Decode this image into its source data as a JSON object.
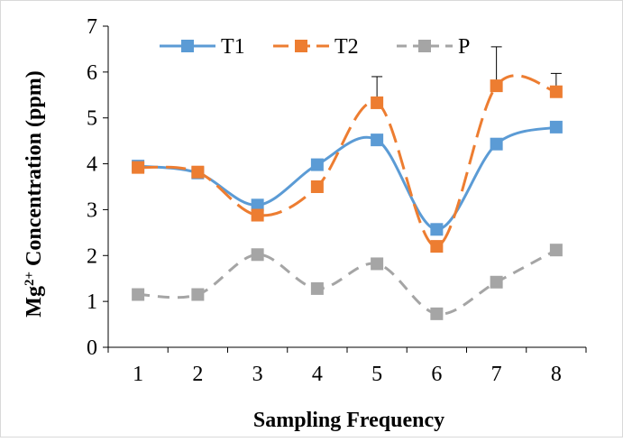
{
  "chart_data": {
    "type": "line",
    "categories": [
      1,
      2,
      3,
      4,
      5,
      6,
      7,
      8
    ],
    "xlabel": "Sampling Frequency",
    "ylabel": "Mg²⁺ Concentration (ppm)",
    "ylabel_parts": {
      "base": "Mg",
      "sup": "2+",
      "rest": " Concentration (ppm)"
    },
    "ylim": [
      0,
      7
    ],
    "yticks": [
      0,
      1,
      2,
      3,
      4,
      5,
      6,
      7
    ],
    "grid": false,
    "legend_position": "top",
    "series": [
      {
        "name": "T1",
        "values": [
          3.95,
          3.8,
          3.1,
          3.98,
          4.52,
          2.57,
          4.43,
          4.8
        ],
        "color": "#5B9BD5",
        "line_style": "solid",
        "smooth": true
      },
      {
        "name": "T2",
        "values": [
          3.92,
          3.82,
          2.88,
          3.5,
          5.33,
          2.2,
          5.7,
          5.57
        ],
        "error_upper": [
          null,
          null,
          null,
          null,
          5.9,
          null,
          6.55,
          5.97
        ],
        "color": "#ED7D31",
        "line_style": "long-dash",
        "smooth": true
      },
      {
        "name": "P",
        "values": [
          1.15,
          1.15,
          2.02,
          1.28,
          1.82,
          0.73,
          1.42,
          2.12
        ],
        "color": "#A5A5A5",
        "line_style": "dash",
        "smooth": true
      }
    ]
  }
}
